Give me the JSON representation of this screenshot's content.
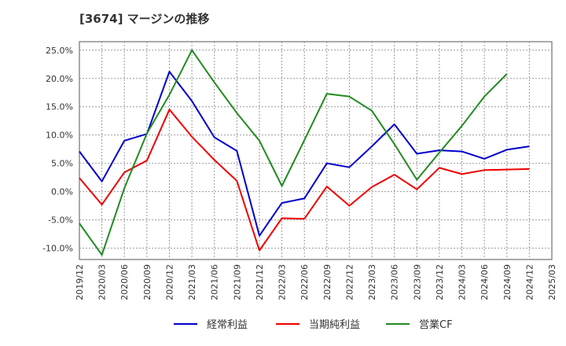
{
  "chart_data": {
    "type": "line",
    "title": "[3674]  マージンの推移",
    "x": [
      "2019/12",
      "2020/03",
      "2020/06",
      "2020/09",
      "2020/12",
      "2021/03",
      "2021/06",
      "2021/09",
      "2021/12",
      "2022/03",
      "2022/06",
      "2022/09",
      "2022/12",
      "2023/03",
      "2023/06",
      "2023/09",
      "2023/12",
      "2024/03",
      "2024/06",
      "2024/09",
      "2024/12",
      "2025/03"
    ],
    "y_ticks": [
      "25.0%",
      "20.0%",
      "15.0%",
      "10.0%",
      "5.0%",
      "0.0%",
      "-5.0%",
      "-10.0%"
    ],
    "y_tick_values": [
      25,
      20,
      15,
      10,
      5,
      0,
      -5,
      -10
    ],
    "ylim": [
      -12,
      26.5
    ],
    "grid": true,
    "legend_position": "bottom",
    "series": [
      {
        "name": "経常利益",
        "color": "#0000cc",
        "values": [
          7.1,
          1.8,
          9.0,
          10.2,
          21.2,
          16.0,
          9.6,
          7.2,
          -7.8,
          -2.0,
          -1.2,
          5.0,
          4.3,
          8.0,
          11.9,
          6.7,
          7.3,
          7.1,
          5.8,
          7.4,
          8.0,
          null
        ]
      },
      {
        "name": "当期純利益",
        "color": "#ee0000",
        "values": [
          2.4,
          -2.3,
          3.4,
          5.5,
          14.5,
          9.7,
          5.6,
          1.9,
          -10.4,
          -4.7,
          -4.8,
          0.9,
          -2.5,
          0.8,
          3.0,
          0.4,
          4.2,
          3.1,
          3.8,
          3.9,
          4.0,
          null
        ]
      },
      {
        "name": "営業CF",
        "color": "#228b22",
        "values": [
          -5.6,
          -11.2,
          0.6,
          10.3,
          17.1,
          25.0,
          19.3,
          13.9,
          9.0,
          1.0,
          9.1,
          17.3,
          16.8,
          14.3,
          8.4,
          2.1,
          6.9,
          11.6,
          16.8,
          20.8,
          null,
          null
        ]
      }
    ]
  }
}
